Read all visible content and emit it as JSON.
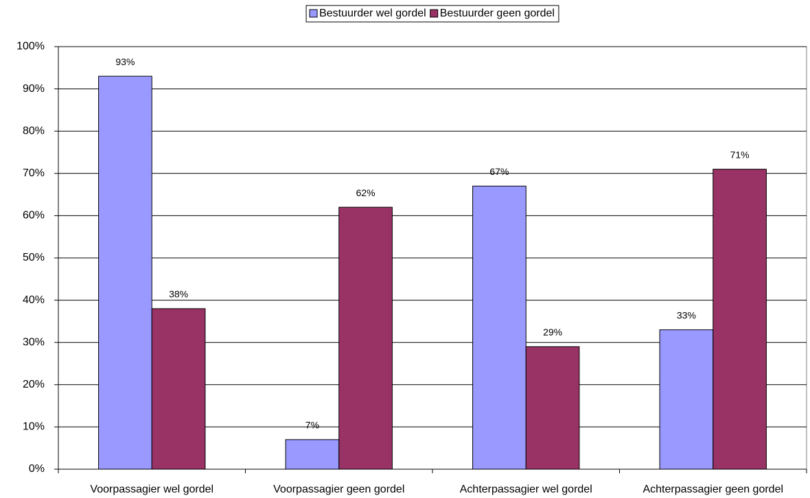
{
  "chart_data": {
    "type": "bar",
    "categories": [
      "Voorpassagier wel gordel",
      "Voorpassagier geen gordel",
      "Achterpassagier wel gordel",
      "Achterpassagier geen gordel"
    ],
    "series": [
      {
        "name": "Bestuurder wel gordel",
        "color": "#9999ff",
        "values": [
          93,
          7,
          67,
          33
        ],
        "value_labels": [
          "93%",
          "7%",
          "67%",
          "33%"
        ]
      },
      {
        "name": "Bestuurder geen gordel",
        "color": "#993366",
        "values": [
          38,
          62,
          29,
          71
        ],
        "value_labels": [
          "38%",
          "62%",
          "29%",
          "71%"
        ]
      }
    ],
    "ylim": [
      0,
      100
    ],
    "yticks": [
      {
        "value": 0,
        "label": "0%"
      },
      {
        "value": 10,
        "label": "10%"
      },
      {
        "value": 20,
        "label": "20%"
      },
      {
        "value": 30,
        "label": "30%"
      },
      {
        "value": 40,
        "label": "40%"
      },
      {
        "value": 50,
        "label": "50%"
      },
      {
        "value": 60,
        "label": "60%"
      },
      {
        "value": 70,
        "label": "70%"
      },
      {
        "value": 80,
        "label": "80%"
      },
      {
        "value": 90,
        "label": "90%"
      },
      {
        "value": 100,
        "label": "100%"
      }
    ],
    "grid": true,
    "legend": "top"
  }
}
